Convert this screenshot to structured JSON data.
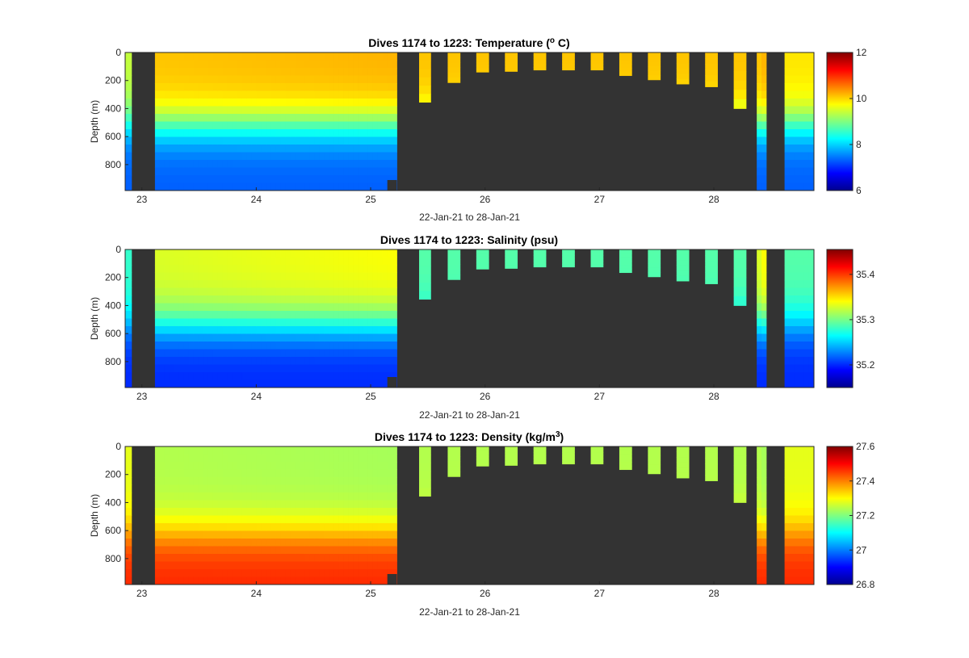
{
  "figure": {
    "background": "#ffffff",
    "no_data_color": "#333333"
  },
  "chart_data": [
    {
      "type": "heatmap",
      "variable": "temperature",
      "title_text": "Dives 1174 to 1223: Temperature (",
      "title_sup": "o",
      "title_after": " C)",
      "xlabel": "22-Jan-21 to 28-Jan-21",
      "ylabel": "Depth (m)",
      "x_ticks": [
        "23",
        "24",
        "25",
        "26",
        "27",
        "28"
      ],
      "y_ticks": [
        "0",
        "200",
        "400",
        "600",
        "800"
      ],
      "xlim": [
        "22-Jan-21 20:30",
        "28-Jan-21 21:00"
      ],
      "ylim": [
        0,
        985
      ],
      "y_reversed": true,
      "colormap": "jet",
      "clim": [
        6,
        12
      ],
      "colorbar_ticks": [
        "6",
        "8",
        "10",
        "12"
      ],
      "profile": {
        "surface": 10.1,
        "deep_surface": 10.2,
        "thermocline_depth": 520,
        "deep": 7.3
      },
      "end_values": {
        "first_dive": 9.4,
        "last_dive": 9.9
      }
    },
    {
      "type": "heatmap",
      "variable": "salinity",
      "title_text": "Dives 1174 to 1223: Salinity (psu)",
      "title_sup": "",
      "title_after": "",
      "xlabel": "22-Jan-21 to 28-Jan-21",
      "ylabel": "Depth (m)",
      "x_ticks": [
        "23",
        "24",
        "25",
        "26",
        "27",
        "28"
      ],
      "y_ticks": [
        "0",
        "200",
        "400",
        "600",
        "800"
      ],
      "xlim": [
        "22-Jan-21 20:30",
        "28-Jan-21 21:00"
      ],
      "ylim": [
        0,
        985
      ],
      "y_reversed": true,
      "colormap": "jet",
      "clim": [
        35.15,
        35.455
      ],
      "colorbar_ticks": [
        "35.2",
        "35.3",
        "35.4"
      ],
      "profile": {
        "surface": 35.33,
        "deep_surface": 35.34,
        "thermocline_depth": 540,
        "deep": 35.2
      },
      "end_values": {
        "first_dive": 35.28,
        "last_dive": 35.29
      },
      "short_dive_surface_value": 35.29
    },
    {
      "type": "heatmap",
      "variable": "density",
      "title_text": "Dives 1174 to 1223: Density (kg/m",
      "title_sup": "3",
      "title_after": ")",
      "xlabel": "22-Jan-21 to 28-Jan-21",
      "ylabel": "Depth (m)",
      "x_ticks": [
        "23",
        "24",
        "25",
        "26",
        "27",
        "28"
      ],
      "y_ticks": [
        "0",
        "200",
        "400",
        "600",
        "800"
      ],
      "xlim": [
        "22-Jan-21 20:30",
        "28-Jan-21 21:00"
      ],
      "ylim": [
        0,
        985
      ],
      "y_reversed": true,
      "colormap": "jet",
      "clim": [
        26.8,
        27.6
      ],
      "colorbar_ticks": [
        "26.8",
        "27",
        "27.2",
        "27.4",
        "27.6"
      ],
      "profile": {
        "surface": 27.24,
        "deep_surface": 27.23,
        "thermocline_depth": 620,
        "deep": 27.47
      },
      "end_values": {
        "first_dive": 27.28,
        "last_dive": 27.28
      }
    }
  ],
  "dives": {
    "deep_sections": [
      {
        "start": "22-Jan-21 20:30",
        "end": "22-Jan-21 21:50",
        "max_depth": 985
      },
      {
        "start": "23-Jan-21 02:45",
        "end": "25-Jan-21 05:30",
        "max_depth": 985
      },
      {
        "start": "28-Jan-21 09:00",
        "end": "28-Jan-21 11:00",
        "max_depth": 985
      },
      {
        "start": "28-Jan-21 14:50",
        "end": "28-Jan-21 21:00",
        "max_depth": 985
      }
    ],
    "short_dives": [
      {
        "start": "25-Jan-21 10:10",
        "end": "25-Jan-21 12:40",
        "max_depth": 355
      },
      {
        "start": "25-Jan-21 16:10",
        "end": "25-Jan-21 18:50",
        "max_depth": 215
      },
      {
        "start": "25-Jan-21 22:10",
        "end": "26-Jan-21 00:50",
        "max_depth": 140
      },
      {
        "start": "26-Jan-21 04:10",
        "end": "26-Jan-21 06:50",
        "max_depth": 135
      },
      {
        "start": "26-Jan-21 10:10",
        "end": "26-Jan-21 12:50",
        "max_depth": 125
      },
      {
        "start": "26-Jan-21 16:10",
        "end": "26-Jan-21 18:50",
        "max_depth": 125
      },
      {
        "start": "26-Jan-21 22:10",
        "end": "27-Jan-21 00:50",
        "max_depth": 125
      },
      {
        "start": "27-Jan-21 04:10",
        "end": "27-Jan-21 06:50",
        "max_depth": 165
      },
      {
        "start": "27-Jan-21 10:10",
        "end": "27-Jan-21 12:50",
        "max_depth": 195
      },
      {
        "start": "27-Jan-21 16:10",
        "end": "27-Jan-21 18:50",
        "max_depth": 225
      },
      {
        "start": "27-Jan-21 22:10",
        "end": "28-Jan-21 00:50",
        "max_depth": 245
      },
      {
        "start": "28-Jan-21 04:10",
        "end": "28-Jan-21 06:50",
        "max_depth": 400
      }
    ],
    "short_dive_rule": {
      "start": "25-Jan-21 03:30",
      "end": "25-Jan-21 05:30",
      "max_depth": 910
    }
  }
}
